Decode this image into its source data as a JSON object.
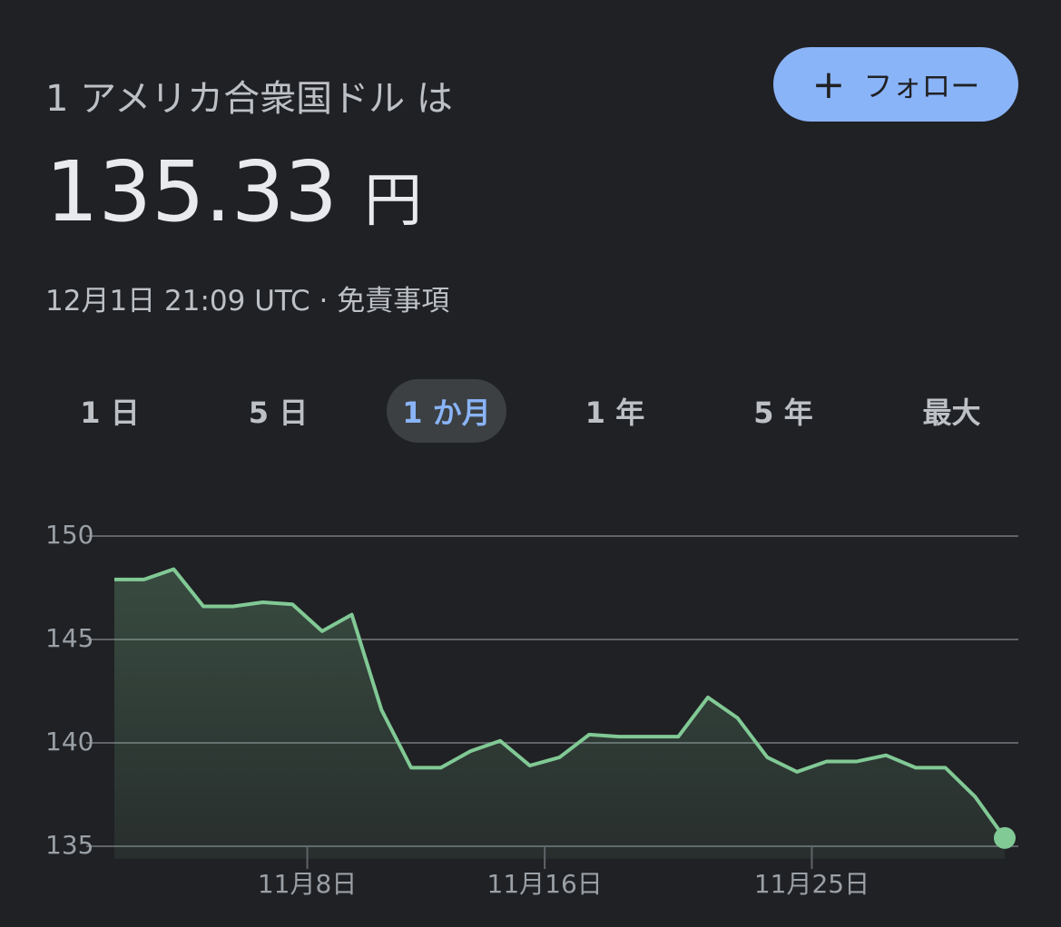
{
  "header": {
    "title": "1 アメリカ合衆国ドル は",
    "price": "135.33",
    "unit": "円",
    "timestamp": "12月1日 21:09 UTC · 免責事項",
    "follow_button": "フォロー"
  },
  "tabs": [
    "1 日",
    "5 日",
    "1 か月",
    "1 年",
    "5 年",
    "最大"
  ],
  "chart_data": {
    "type": "area",
    "color": "#81c995",
    "categories": [
      null,
      null,
      null,
      null,
      null,
      null,
      null,
      "11月8日",
      null,
      null,
      null,
      null,
      null,
      null,
      null,
      "11月16日",
      null,
      null,
      null,
      null,
      null,
      null,
      null,
      null,
      "11月25日",
      null,
      null,
      null,
      null,
      null,
      null
    ],
    "values": [
      147.9,
      147.9,
      148.4,
      146.6,
      146.6,
      146.8,
      146.7,
      145.4,
      146.2,
      141.6,
      138.8,
      138.8,
      139.6,
      140.1,
      138.9,
      139.3,
      140.4,
      140.3,
      140.3,
      140.3,
      142.2,
      141.2,
      139.3,
      138.6,
      139.1,
      139.1,
      139.4,
      138.8,
      138.8,
      137.4,
      135.4
    ],
    "ylim": [
      134.4,
      150
    ],
    "yticks": [
      135,
      140,
      145,
      150
    ],
    "grid": true
  }
}
